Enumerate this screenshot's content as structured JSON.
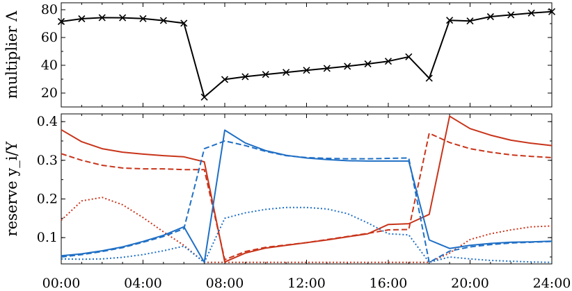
{
  "chart_data": [
    {
      "type": "line",
      "panel": "top",
      "ylabel": "multiplier Λ",
      "x": [
        0,
        1,
        2,
        3,
        4,
        5,
        6,
        7,
        8,
        9,
        10,
        11,
        12,
        13,
        14,
        15,
        16,
        17,
        18,
        19,
        20,
        21,
        22,
        23,
        24
      ],
      "ylim": [
        10,
        85
      ],
      "yticks": [
        20,
        40,
        60,
        80
      ],
      "series": [
        {
          "name": "multiplier",
          "color": "#000000",
          "marker": "x",
          "values": [
            71.5,
            73.5,
            74.3,
            74.2,
            73.6,
            72.2,
            70.3,
            17.1,
            29.8,
            31.8,
            33.4,
            34.9,
            36.4,
            37.8,
            39.3,
            41.0,
            42.9,
            46.1,
            30.7,
            72.4,
            71.9,
            75.0,
            76.3,
            77.6,
            78.6
          ]
        }
      ]
    },
    {
      "type": "line",
      "panel": "bottom",
      "ylabel": "reserve y_i/Y",
      "xlabel": "",
      "x": [
        0,
        1,
        2,
        3,
        4,
        5,
        6,
        7,
        8,
        9,
        10,
        11,
        12,
        13,
        14,
        15,
        16,
        17,
        18,
        19,
        20,
        21,
        22,
        23,
        24
      ],
      "xlim": [
        0,
        24
      ],
      "ylim": [
        0.032,
        0.42
      ],
      "yticks": [
        0.1,
        0.2,
        0.3,
        0.4
      ],
      "xticks": [
        0,
        4,
        8,
        12,
        16,
        20,
        24
      ],
      "xticklabels": [
        "00:00",
        "04:00",
        "08:00",
        "12:00",
        "16:00",
        "20:00",
        "24:00"
      ],
      "series": [
        {
          "name": "red solid",
          "color": "#c8341a",
          "dash": "solid",
          "values": [
            0.379,
            0.348,
            0.33,
            0.321,
            0.316,
            0.312,
            0.309,
            0.296,
            0.037,
            0.06,
            0.073,
            0.08,
            0.087,
            0.094,
            0.102,
            0.11,
            0.134,
            0.136,
            0.16,
            0.414,
            0.382,
            0.365,
            0.352,
            0.344,
            0.338
          ]
        },
        {
          "name": "red dashed",
          "color": "#c8341a",
          "dash": "dashed",
          "values": [
            0.317,
            0.3,
            0.287,
            0.28,
            0.278,
            0.278,
            0.276,
            0.276,
            0.043,
            0.064,
            0.075,
            0.081,
            0.087,
            0.095,
            0.103,
            0.111,
            0.12,
            0.121,
            0.37,
            0.346,
            0.33,
            0.321,
            0.314,
            0.31,
            0.307
          ]
        },
        {
          "name": "red dotted",
          "color": "#c8341a",
          "dash": "dotted",
          "values": [
            0.145,
            0.195,
            0.204,
            0.185,
            0.152,
            0.115,
            0.08,
            0.036,
            0.036,
            0.036,
            0.036,
            0.036,
            0.036,
            0.036,
            0.036,
            0.036,
            0.036,
            0.036,
            0.036,
            0.06,
            0.095,
            0.11,
            0.12,
            0.128,
            0.13
          ]
        },
        {
          "name": "blue solid",
          "color": "#1f6fc5",
          "dash": "solid",
          "values": [
            0.053,
            0.058,
            0.066,
            0.076,
            0.09,
            0.106,
            0.128,
            0.036,
            0.378,
            0.345,
            0.325,
            0.313,
            0.306,
            0.302,
            0.299,
            0.298,
            0.298,
            0.298,
            0.094,
            0.072,
            0.08,
            0.085,
            0.088,
            0.089,
            0.091
          ]
        },
        {
          "name": "blue dashed",
          "color": "#1f6fc5",
          "dash": "dashed",
          "values": [
            0.05,
            0.056,
            0.064,
            0.074,
            0.088,
            0.103,
            0.123,
            0.33,
            0.35,
            0.338,
            0.323,
            0.312,
            0.307,
            0.305,
            0.304,
            0.304,
            0.305,
            0.306,
            0.036,
            0.065,
            0.076,
            0.082,
            0.086,
            0.088,
            0.09
          ]
        },
        {
          "name": "blue dotted",
          "color": "#1f6fc5",
          "dash": "dotted",
          "values": [
            0.045,
            0.044,
            0.045,
            0.049,
            0.056,
            0.066,
            0.078,
            0.036,
            0.15,
            0.164,
            0.173,
            0.178,
            0.178,
            0.174,
            0.162,
            0.138,
            0.11,
            0.107,
            0.036,
            0.05,
            0.045,
            0.041,
            0.039,
            0.037,
            0.036
          ]
        }
      ]
    }
  ]
}
